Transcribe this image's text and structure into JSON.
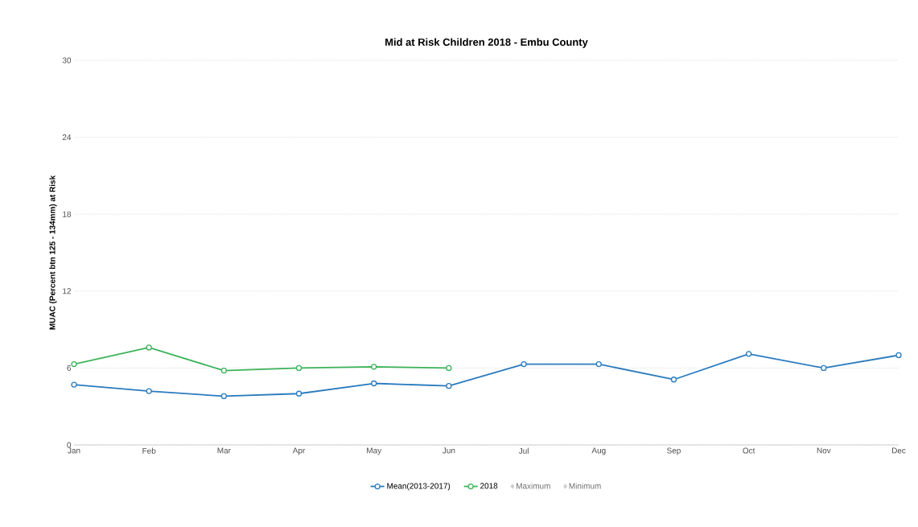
{
  "chart_data": {
    "type": "line",
    "title": "Mid at Risk Children 2018 - Embu County",
    "ylabel": "MUAC (Percent btn 125 - 134mm) at Risk",
    "categories": [
      "Jan",
      "Feb",
      "Mar",
      "Apr",
      "May",
      "Jun",
      "Jul",
      "Aug",
      "Sep",
      "Oct",
      "Nov",
      "Dec"
    ],
    "series": [
      {
        "name": "Mean(2013-2017)",
        "color": "#2a7bbf",
        "values": [
          4.7,
          4.2,
          3.8,
          4.0,
          4.8,
          4.6,
          6.3,
          6.3,
          5.1,
          7.1,
          6.0,
          7.0
        ]
      },
      {
        "name": "2018",
        "color": "#3cb35a",
        "values": [
          6.3,
          7.6,
          5.8,
          6.0,
          6.1,
          6.0,
          null,
          null,
          null,
          null,
          null,
          null
        ]
      },
      {
        "name": "Maximum",
        "color": "#cccccc",
        "values": [
          null,
          null,
          null,
          null,
          null,
          null,
          null,
          null,
          null,
          null,
          null,
          null
        ]
      },
      {
        "name": "Minimum",
        "color": "#cccccc",
        "values": [
          null,
          null,
          null,
          null,
          null,
          null,
          null,
          null,
          null,
          null,
          null,
          null
        ]
      }
    ],
    "ylim": [
      0,
      30
    ],
    "yticks": [
      0,
      6,
      12,
      18,
      24,
      30
    ],
    "grid": "y",
    "legend": "bottom",
    "marker": "circle",
    "line_style": "solid"
  }
}
